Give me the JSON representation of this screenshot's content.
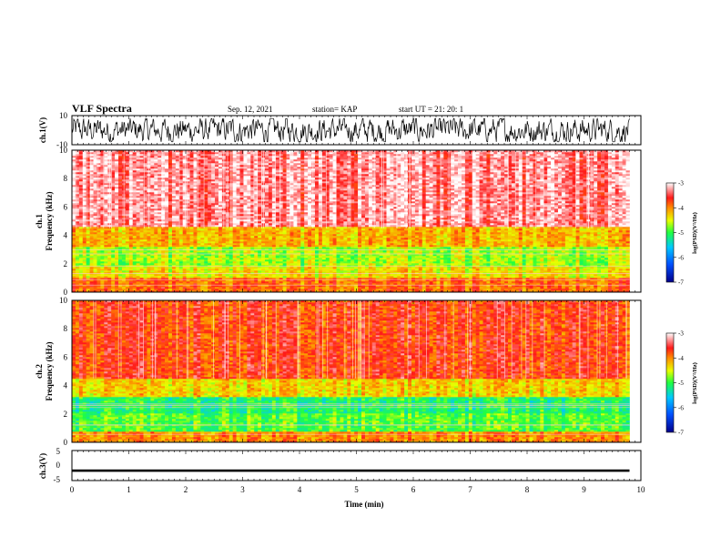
{
  "header": {
    "title": "VLF Spectra",
    "date": "Sep. 12, 2021",
    "station": "station= KAP",
    "start": "start  UT =   21: 20: 1"
  },
  "chart_data": [
    {
      "type": "line",
      "panel": "ch1-waveform",
      "ylabel": "ch.1(V)",
      "ylim": [
        -10,
        10
      ],
      "yticks": [
        "10",
        "-10"
      ],
      "xlim": [
        0,
        10
      ],
      "data_extent_min": 9.8,
      "series": [
        {
          "description_values_mean": 0,
          "values_envelope": [
            -8,
            8
          ]
        }
      ]
    },
    {
      "type": "heatmap",
      "panel": "ch1-spectrogram",
      "ylabel": "ch.1\nFrequency (kHz)",
      "ylim": [
        0,
        10
      ],
      "yticks": [
        "0",
        "2",
        "4",
        "6",
        "8",
        "10"
      ],
      "xlim": [
        0,
        10
      ],
      "colorbar": {
        "label": "log(PSD)(V²/Hz)",
        "range": [
          -7,
          -3
        ],
        "ticks": [
          "-3",
          "-4",
          "-5",
          "-6",
          "-7"
        ]
      },
      "bands_khz_logpsd": [
        {
          "from": 0,
          "to": 1,
          "value": -3.9
        },
        {
          "from": 1,
          "to": 1.8,
          "value": -4.4
        },
        {
          "from": 1.8,
          "to": 3.2,
          "value": -4.7
        },
        {
          "from": 3.2,
          "to": 4.6,
          "value": -4.2
        },
        {
          "from": 4.6,
          "to": 10,
          "value": -3.3
        }
      ]
    },
    {
      "type": "heatmap",
      "panel": "ch2-spectrogram",
      "ylabel": "ch.2\nFrequency (kHz)",
      "ylim": [
        0,
        10
      ],
      "yticks": [
        "0",
        "2",
        "4",
        "6",
        "8",
        "10"
      ],
      "xlim": [
        0,
        10
      ],
      "colorbar": {
        "label": "log(PSD)(V²/Hz)",
        "range": [
          -7,
          -3
        ],
        "ticks": [
          "-3",
          "-4",
          "-5",
          "-6",
          "-7"
        ]
      },
      "bands_khz_logpsd": [
        {
          "from": 0,
          "to": 0.8,
          "value": -4.0
        },
        {
          "from": 0.8,
          "to": 2,
          "value": -4.9
        },
        {
          "from": 2,
          "to": 3.2,
          "value": -5.1
        },
        {
          "from": 3.2,
          "to": 4.5,
          "value": -4.3
        },
        {
          "from": 4.5,
          "to": 10,
          "value": -3.7
        }
      ]
    },
    {
      "type": "line",
      "panel": "ch3-waveform",
      "ylabel": "ch.3(V)",
      "ylim": [
        -5,
        5
      ],
      "yticks": [
        "5",
        "0",
        "-5"
      ],
      "xlim": [
        0,
        10
      ],
      "xticks": [
        "0",
        "1",
        "2",
        "3",
        "4",
        "5",
        "6",
        "7",
        "8",
        "9",
        "10"
      ],
      "xlabel": "Time (min)",
      "series": [
        {
          "band_V": [
            -2.1,
            -1.3
          ]
        }
      ]
    }
  ]
}
